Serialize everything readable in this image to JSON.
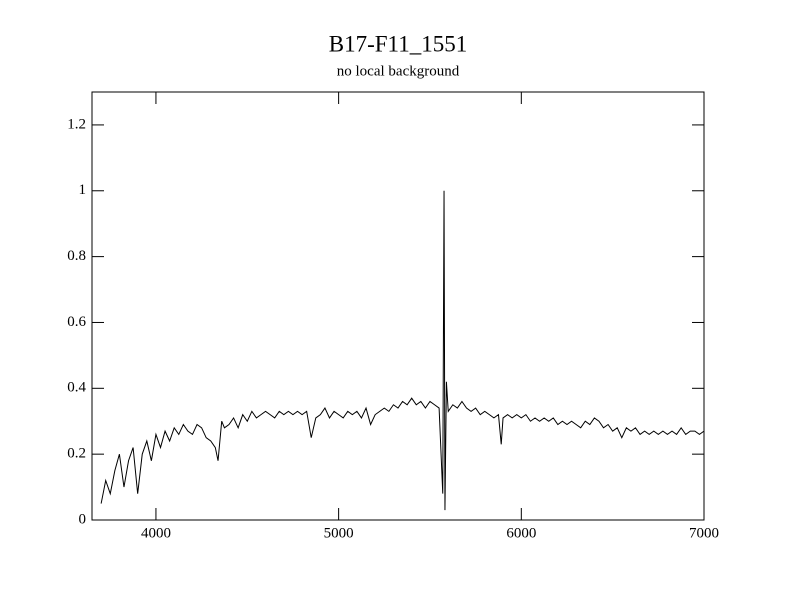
{
  "chart_data": {
    "type": "line",
    "title": "B17-F11_1551",
    "subtitle": "no local background",
    "color": "#000000",
    "xlim": [
      3650,
      7000
    ],
    "xticks": [
      4000,
      5000,
      6000,
      7000
    ],
    "ylim": [
      0,
      1.3
    ],
    "yticks": [
      0,
      0.2,
      0.4,
      0.6,
      0.8,
      1,
      1.2
    ],
    "x": [
      3700,
      3725,
      3750,
      3775,
      3800,
      3825,
      3850,
      3875,
      3900,
      3925,
      3950,
      3975,
      4000,
      4025,
      4050,
      4075,
      4100,
      4125,
      4150,
      4175,
      4200,
      4225,
      4250,
      4275,
      4300,
      4325,
      4340,
      4360,
      4375,
      4400,
      4425,
      4450,
      4475,
      4500,
      4525,
      4550,
      4575,
      4600,
      4625,
      4650,
      4675,
      4700,
      4725,
      4750,
      4775,
      4800,
      4825,
      4850,
      4875,
      4900,
      4925,
      4950,
      4975,
      5000,
      5025,
      5050,
      5075,
      5100,
      5125,
      5150,
      5175,
      5200,
      5225,
      5250,
      5275,
      5300,
      5325,
      5350,
      5375,
      5400,
      5425,
      5450,
      5475,
      5500,
      5525,
      5550,
      5570,
      5577,
      5582,
      5590,
      5600,
      5625,
      5650,
      5675,
      5700,
      5725,
      5750,
      5775,
      5800,
      5825,
      5850,
      5875,
      5890,
      5900,
      5925,
      5950,
      5975,
      6000,
      6025,
      6050,
      6075,
      6100,
      6125,
      6150,
      6175,
      6200,
      6225,
      6250,
      6275,
      6300,
      6325,
      6350,
      6375,
      6400,
      6425,
      6450,
      6475,
      6500,
      6525,
      6550,
      6575,
      6600,
      6625,
      6650,
      6675,
      6700,
      6725,
      6750,
      6775,
      6800,
      6825,
      6850,
      6875,
      6900,
      6925,
      6950,
      6975,
      7000
    ],
    "values": [
      0.05,
      0.12,
      0.08,
      0.15,
      0.2,
      0.1,
      0.18,
      0.22,
      0.08,
      0.2,
      0.24,
      0.18,
      0.26,
      0.22,
      0.27,
      0.24,
      0.28,
      0.26,
      0.29,
      0.27,
      0.26,
      0.29,
      0.28,
      0.25,
      0.24,
      0.22,
      0.18,
      0.3,
      0.28,
      0.29,
      0.31,
      0.28,
      0.32,
      0.3,
      0.33,
      0.31,
      0.32,
      0.33,
      0.32,
      0.31,
      0.33,
      0.32,
      0.33,
      0.32,
      0.33,
      0.32,
      0.33,
      0.25,
      0.31,
      0.32,
      0.34,
      0.31,
      0.33,
      0.32,
      0.31,
      0.33,
      0.32,
      0.33,
      0.31,
      0.34,
      0.29,
      0.32,
      0.33,
      0.34,
      0.33,
      0.35,
      0.34,
      0.36,
      0.35,
      0.37,
      0.35,
      0.36,
      0.34,
      0.36,
      0.35,
      0.34,
      0.08,
      1.0,
      0.03,
      0.42,
      0.33,
      0.35,
      0.34,
      0.36,
      0.34,
      0.33,
      0.34,
      0.32,
      0.33,
      0.32,
      0.31,
      0.32,
      0.23,
      0.31,
      0.32,
      0.31,
      0.32,
      0.31,
      0.32,
      0.3,
      0.31,
      0.3,
      0.31,
      0.3,
      0.31,
      0.29,
      0.3,
      0.29,
      0.3,
      0.29,
      0.28,
      0.3,
      0.29,
      0.31,
      0.3,
      0.28,
      0.29,
      0.27,
      0.28,
      0.25,
      0.28,
      0.27,
      0.28,
      0.26,
      0.27,
      0.26,
      0.27,
      0.26,
      0.27,
      0.26,
      0.27,
      0.26,
      0.28,
      0.26,
      0.27,
      0.27,
      0.26,
      0.27
    ]
  }
}
